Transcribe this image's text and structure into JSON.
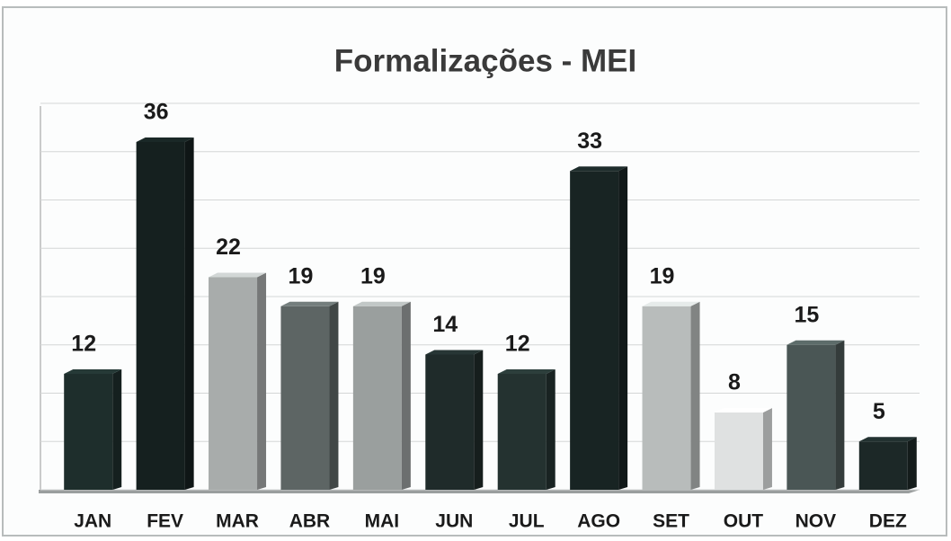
{
  "chart_data": {
    "type": "bar",
    "title": "Formalizações - MEI",
    "categories": [
      "JAN",
      "FEV",
      "MAR",
      "ABR",
      "MAI",
      "JUN",
      "JUL",
      "AGO",
      "SET",
      "OUT",
      "NOV",
      "DEZ"
    ],
    "values": [
      12,
      36,
      22,
      19,
      19,
      14,
      12,
      33,
      19,
      8,
      15,
      5
    ],
    "colors": [
      "#1e2e2c",
      "#15201f",
      "#a8acab",
      "#5d6564",
      "#9a9f9e",
      "#1f2b2a",
      "#243230",
      "#182423",
      "#b8bcbb",
      "#dfe1e1",
      "#4a5655",
      "#1c2827"
    ],
    "ylim": [
      0,
      40
    ],
    "yticks": [
      0,
      5,
      10,
      15,
      20,
      25,
      30,
      35,
      40
    ],
    "grid": true
  }
}
